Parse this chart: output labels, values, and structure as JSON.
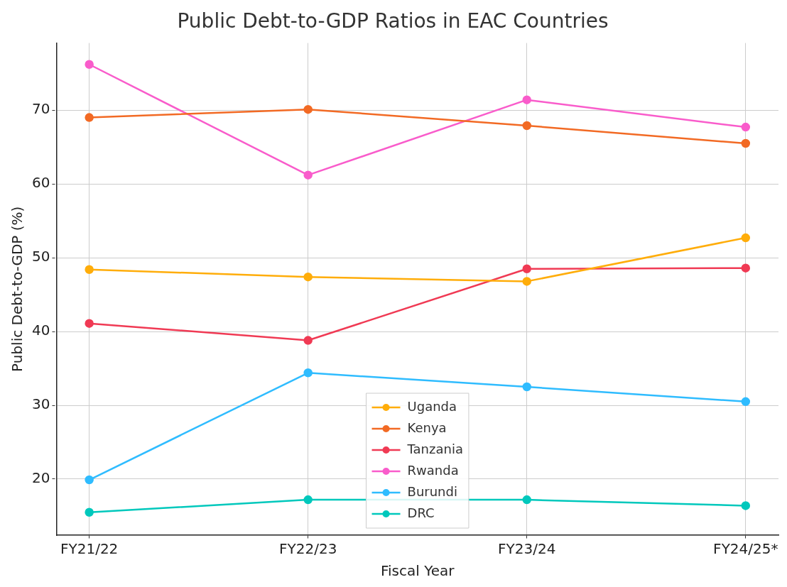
{
  "chart_data": {
    "type": "line",
    "title": "Public Debt-to-GDP Ratios in EAC Countries",
    "xlabel": "Fiscal Year",
    "ylabel": "Public Debt-to-GDP (%)",
    "categories": [
      "FY21/22",
      "FY22/23",
      "FY23/24",
      "FY24/25*"
    ],
    "series": [
      {
        "name": "Uganda",
        "color": "#ffad0a",
        "values": [
          48.4,
          47.4,
          46.8,
          52.7
        ]
      },
      {
        "name": "Kenya",
        "color": "#f26a24",
        "values": [
          69.0,
          70.1,
          67.9,
          65.5
        ]
      },
      {
        "name": "Tanzania",
        "color": "#f03a54",
        "values": [
          41.1,
          38.8,
          48.5,
          48.6
        ]
      },
      {
        "name": "Rwanda",
        "color": "#f95ccb",
        "values": [
          76.2,
          61.2,
          71.4,
          67.7
        ]
      },
      {
        "name": "Burundi",
        "color": "#2fbcff",
        "values": [
          19.9,
          34.4,
          32.5,
          30.5
        ]
      },
      {
        "name": "DRC",
        "color": "#00c8bc",
        "values": [
          15.5,
          17.2,
          17.2,
          16.4
        ]
      }
    ],
    "ylim": [
      12.4,
      79.1
    ],
    "yticks": [
      20,
      30,
      40,
      50,
      60,
      70
    ],
    "grid": true,
    "legend": "bottom",
    "marker": "circle",
    "line_style": "solid"
  }
}
